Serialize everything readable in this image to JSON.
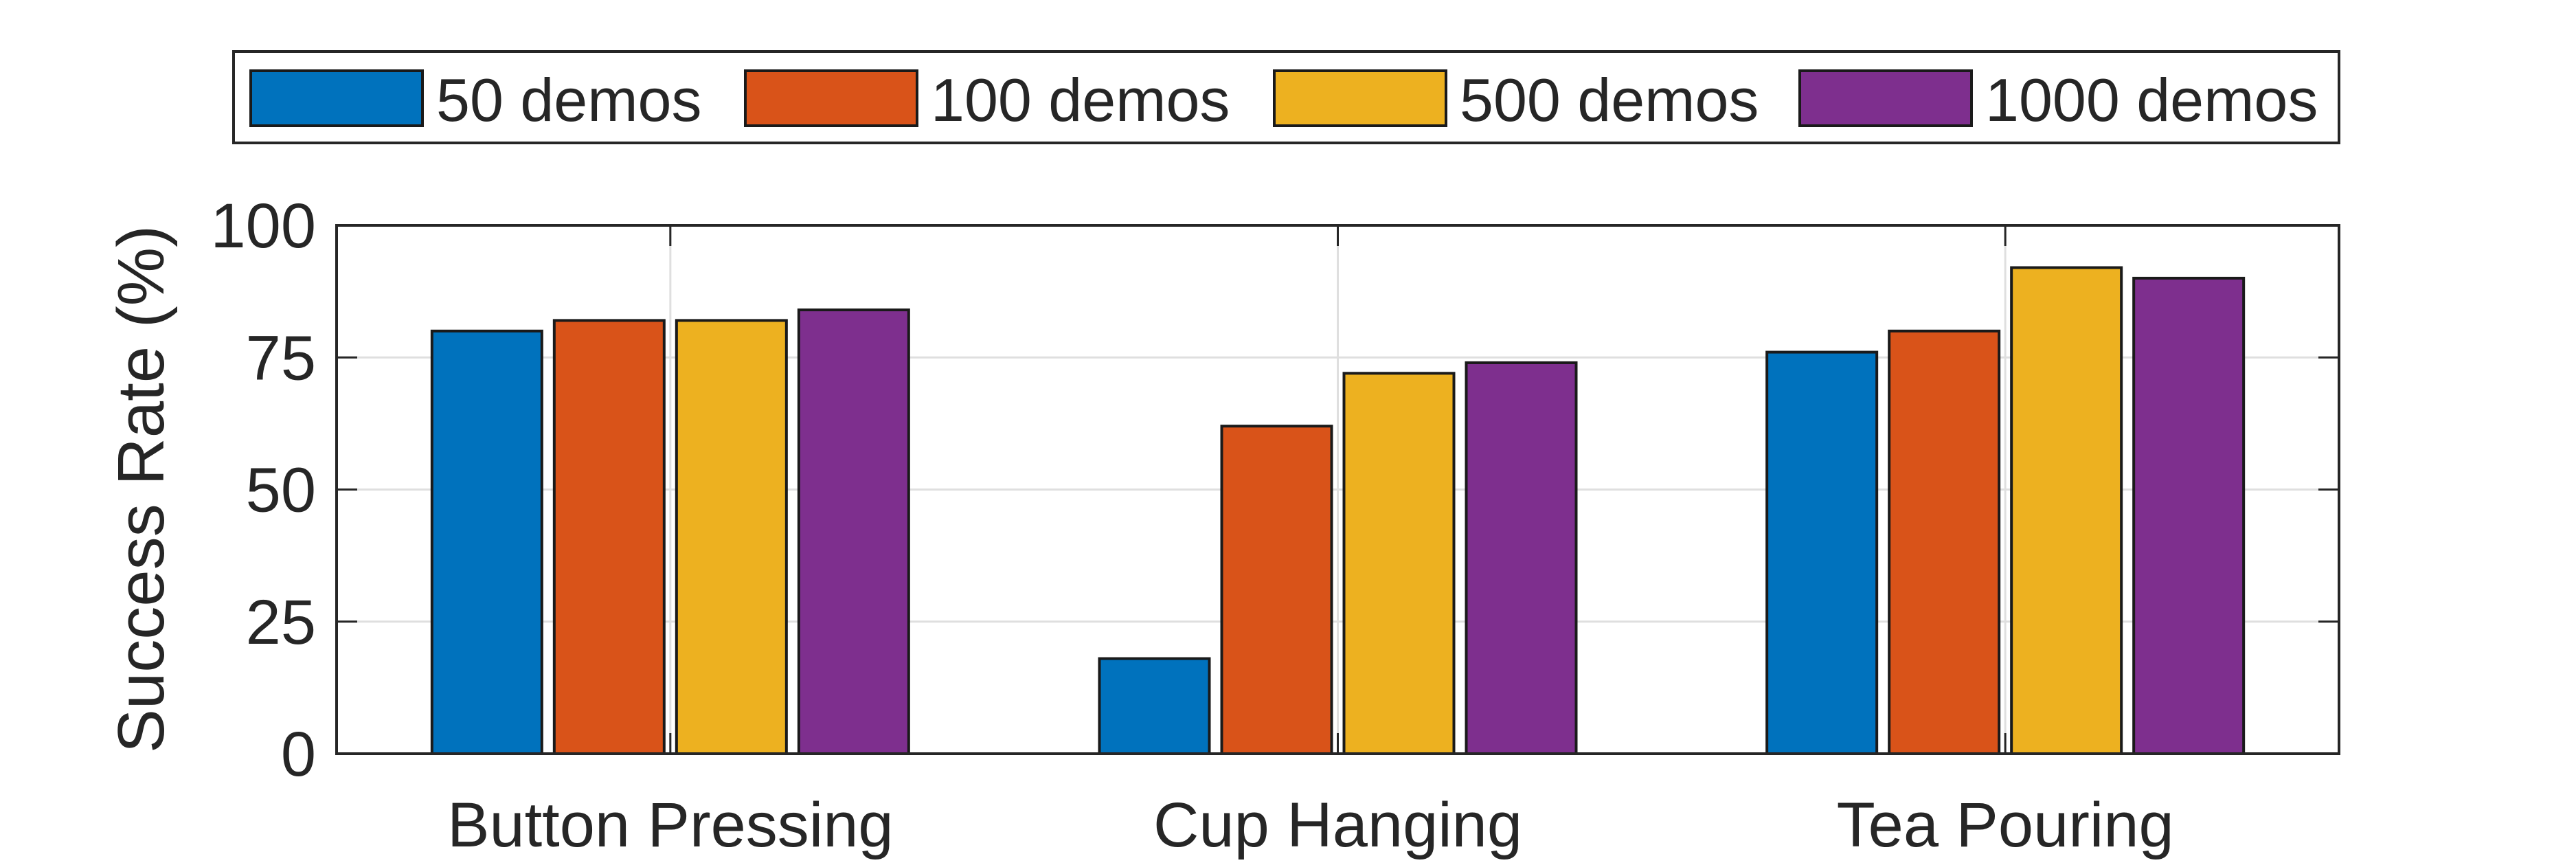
{
  "chart_data": {
    "type": "bar",
    "title": "",
    "xlabel": "",
    "ylabel": "Success Rate (%)",
    "ylim": [
      0,
      100
    ],
    "yticks": [
      "0",
      "25",
      "50",
      "75",
      "100"
    ],
    "grid": true,
    "legend_position": "top",
    "categories": [
      "Button Pressing",
      "Cup Hanging",
      "Tea Pouring"
    ],
    "series": [
      {
        "name": "50 demos",
        "color": "#0072BD",
        "values": [
          80,
          18,
          76
        ]
      },
      {
        "name": "100 demos",
        "color": "#D95319",
        "values": [
          82,
          62,
          80
        ]
      },
      {
        "name": "500 demos",
        "color": "#EDB120",
        "values": [
          82,
          72,
          92
        ]
      },
      {
        "name": "1000 demos",
        "color": "#7E2F8E",
        "values": [
          84,
          74,
          90
        ]
      }
    ]
  }
}
